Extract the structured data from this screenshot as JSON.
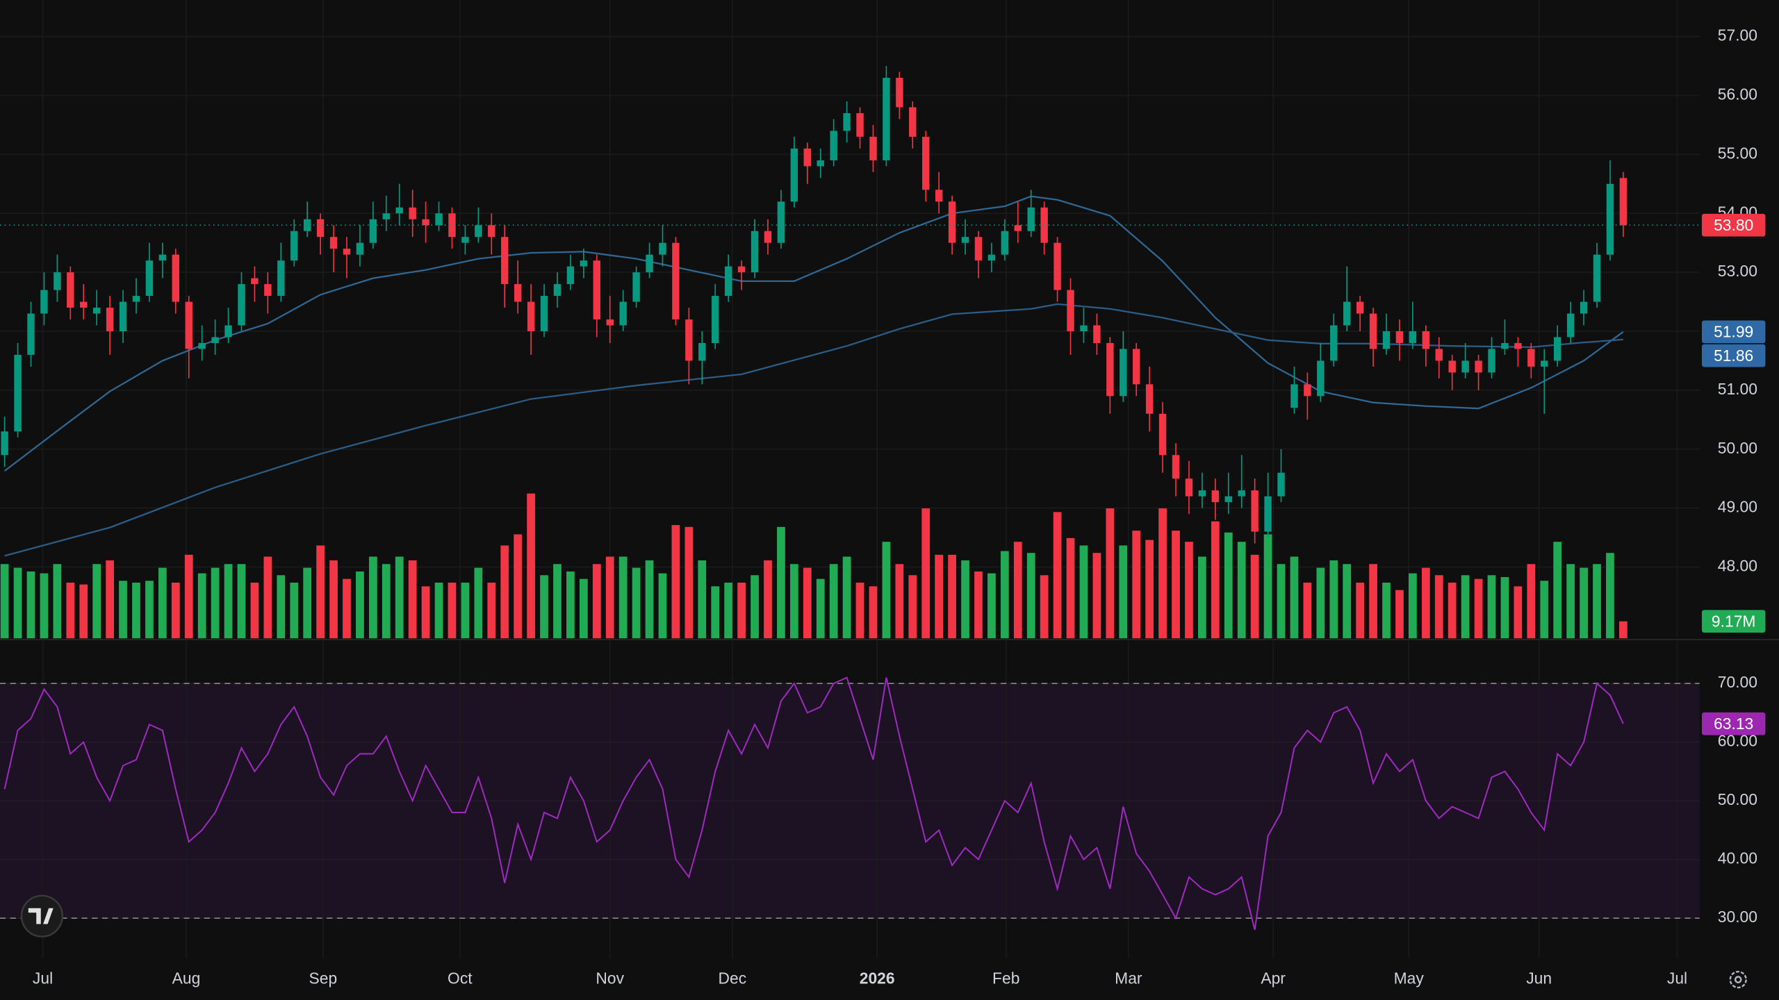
{
  "chart_data": {
    "type": "candlestick",
    "xlim": [
      -0.35,
      128.8
    ],
    "xticks": [
      {
        "value": 2.9,
        "label": "Jul"
      },
      {
        "value": 13.8,
        "label": "Aug"
      },
      {
        "value": 24.2,
        "label": "Sep"
      },
      {
        "value": 34.6,
        "label": "Oct"
      },
      {
        "value": 46,
        "label": "Nov"
      },
      {
        "value": 55.3,
        "label": "Dec"
      },
      {
        "value": 66.3,
        "label": "2026"
      },
      {
        "value": 76.1,
        "label": "Feb"
      },
      {
        "value": 85.4,
        "label": "Mar"
      },
      {
        "value": 96.4,
        "label": "Apr"
      },
      {
        "value": 106.7,
        "label": "May"
      },
      {
        "value": 116.6,
        "label": "Jun"
      },
      {
        "value": 127.1,
        "label": "Jul"
      }
    ],
    "ylim": [
      46.79,
      57.62
    ],
    "yticks": [
      {
        "value": 48,
        "label": "48.00"
      },
      {
        "value": 49,
        "label": "49.00"
      },
      {
        "value": 50,
        "label": "50.00"
      },
      {
        "value": 51,
        "label": "51.00"
      },
      {
        "value": 52,
        "label": "52.00"
      },
      {
        "value": 53,
        "label": "53.00"
      },
      {
        "value": 54,
        "label": "54.00"
      },
      {
        "value": 55,
        "label": "55.00"
      },
      {
        "value": 56,
        "label": "56.00"
      },
      {
        "value": 57,
        "label": "57.00"
      }
    ],
    "grid": true,
    "up_color": "#089981",
    "down_color": "#f23645",
    "ohlc": [
      [
        49.9,
        50.55,
        49.7,
        50.3
      ],
      [
        50.3,
        51.8,
        50.2,
        51.6
      ],
      [
        51.6,
        52.5,
        51.4,
        52.3
      ],
      [
        52.3,
        53.0,
        52.1,
        52.7
      ],
      [
        52.7,
        53.3,
        52.5,
        53.0
      ],
      [
        53.0,
        53.1,
        52.2,
        52.4
      ],
      [
        52.5,
        52.8,
        52.2,
        52.4
      ],
      [
        52.3,
        52.7,
        52.1,
        52.4
      ],
      [
        52.4,
        52.6,
        51.6,
        52.0
      ],
      [
        52.0,
        52.7,
        51.8,
        52.5
      ],
      [
        52.5,
        52.9,
        52.3,
        52.6
      ],
      [
        52.6,
        53.5,
        52.5,
        53.2
      ],
      [
        53.2,
        53.5,
        52.9,
        53.3
      ],
      [
        53.3,
        53.4,
        52.3,
        52.5
      ],
      [
        52.5,
        52.6,
        51.2,
        51.7
      ],
      [
        51.7,
        52.1,
        51.5,
        51.8
      ],
      [
        51.8,
        52.2,
        51.6,
        51.9
      ],
      [
        51.9,
        52.4,
        51.8,
        52.1
      ],
      [
        52.1,
        53.0,
        52.0,
        52.8
      ],
      [
        52.9,
        53.1,
        52.5,
        52.8
      ],
      [
        52.8,
        53.0,
        52.3,
        52.6
      ],
      [
        52.6,
        53.5,
        52.5,
        53.2
      ],
      [
        53.2,
        53.9,
        53.1,
        53.7
      ],
      [
        53.7,
        54.2,
        53.6,
        53.9
      ],
      [
        53.9,
        54.0,
        53.3,
        53.6
      ],
      [
        53.6,
        53.8,
        53.0,
        53.4
      ],
      [
        53.4,
        53.6,
        52.9,
        53.3
      ],
      [
        53.3,
        53.8,
        53.1,
        53.5
      ],
      [
        53.5,
        54.2,
        53.4,
        53.9
      ],
      [
        53.9,
        54.3,
        53.7,
        54.0
      ],
      [
        54.0,
        54.5,
        53.8,
        54.1
      ],
      [
        54.1,
        54.4,
        53.6,
        53.9
      ],
      [
        53.9,
        54.2,
        53.5,
        53.8
      ],
      [
        53.8,
        54.2,
        53.7,
        54.0
      ],
      [
        54.0,
        54.1,
        53.4,
        53.6
      ],
      [
        53.5,
        53.8,
        53.3,
        53.6
      ],
      [
        53.6,
        54.1,
        53.5,
        53.8
      ],
      [
        53.8,
        54.0,
        53.3,
        53.6
      ],
      [
        53.6,
        53.8,
        52.4,
        52.8
      ],
      [
        52.8,
        53.2,
        52.3,
        52.5
      ],
      [
        52.5,
        52.8,
        51.6,
        52.0
      ],
      [
        52.0,
        52.8,
        51.9,
        52.6
      ],
      [
        52.6,
        53.0,
        52.4,
        52.8
      ],
      [
        52.8,
        53.3,
        52.7,
        53.1
      ],
      [
        53.1,
        53.4,
        52.9,
        53.2
      ],
      [
        53.2,
        53.3,
        51.9,
        52.2
      ],
      [
        52.2,
        52.6,
        51.8,
        52.1
      ],
      [
        52.1,
        52.7,
        52.0,
        52.5
      ],
      [
        52.5,
        53.1,
        52.4,
        53.0
      ],
      [
        53.0,
        53.5,
        52.9,
        53.3
      ],
      [
        53.3,
        53.8,
        53.1,
        53.5
      ],
      [
        53.5,
        53.6,
        52.1,
        52.2
      ],
      [
        52.2,
        52.4,
        51.1,
        51.5
      ],
      [
        51.5,
        52.0,
        51.1,
        51.8
      ],
      [
        51.8,
        52.8,
        51.7,
        52.6
      ],
      [
        52.6,
        53.3,
        52.5,
        53.1
      ],
      [
        53.1,
        53.2,
        52.7,
        53.0
      ],
      [
        53.0,
        53.9,
        52.9,
        53.7
      ],
      [
        53.7,
        53.9,
        53.3,
        53.5
      ],
      [
        53.5,
        54.4,
        53.4,
        54.2
      ],
      [
        54.2,
        55.3,
        54.1,
        55.1
      ],
      [
        55.1,
        55.2,
        54.5,
        54.8
      ],
      [
        54.8,
        55.1,
        54.6,
        54.9
      ],
      [
        54.9,
        55.6,
        54.8,
        55.4
      ],
      [
        55.4,
        55.9,
        55.2,
        55.7
      ],
      [
        55.7,
        55.8,
        55.1,
        55.3
      ],
      [
        55.3,
        55.5,
        54.7,
        54.9
      ],
      [
        54.9,
        56.5,
        54.8,
        56.3
      ],
      [
        56.3,
        56.4,
        55.6,
        55.8
      ],
      [
        55.8,
        55.9,
        55.1,
        55.3
      ],
      [
        55.3,
        55.4,
        54.2,
        54.4
      ],
      [
        54.4,
        54.7,
        54.0,
        54.2
      ],
      [
        54.2,
        54.3,
        53.3,
        53.5
      ],
      [
        53.5,
        53.9,
        53.3,
        53.6
      ],
      [
        53.6,
        53.7,
        52.9,
        53.2
      ],
      [
        53.2,
        53.5,
        53.0,
        53.3
      ],
      [
        53.3,
        53.9,
        53.2,
        53.7
      ],
      [
        53.8,
        54.2,
        53.5,
        53.7
      ],
      [
        53.7,
        54.4,
        53.6,
        54.1
      ],
      [
        54.1,
        54.2,
        53.3,
        53.5
      ],
      [
        53.5,
        53.6,
        52.5,
        52.7
      ],
      [
        52.7,
        52.9,
        51.6,
        52.0
      ],
      [
        52.0,
        52.4,
        51.8,
        52.1
      ],
      [
        52.1,
        52.3,
        51.6,
        51.8
      ],
      [
        51.8,
        51.9,
        50.6,
        50.9
      ],
      [
        50.9,
        52.0,
        50.8,
        51.7
      ],
      [
        51.7,
        51.8,
        50.9,
        51.1
      ],
      [
        51.1,
        51.4,
        50.3,
        50.6
      ],
      [
        50.6,
        50.8,
        49.6,
        49.9
      ],
      [
        49.9,
        50.1,
        49.2,
        49.5
      ],
      [
        49.5,
        49.8,
        48.9,
        49.2
      ],
      [
        49.2,
        49.6,
        49.0,
        49.3
      ],
      [
        49.3,
        49.5,
        48.8,
        49.1
      ],
      [
        49.1,
        49.6,
        48.9,
        49.2
      ],
      [
        49.2,
        49.9,
        49.0,
        49.3
      ],
      [
        49.3,
        49.5,
        48.4,
        48.6
      ],
      [
        48.6,
        49.6,
        48.5,
        49.2
      ],
      [
        49.2,
        50.0,
        49.1,
        49.6
      ],
      [
        50.7,
        51.4,
        50.6,
        51.1
      ],
      [
        51.1,
        51.3,
        50.5,
        50.9
      ],
      [
        50.9,
        51.8,
        50.8,
        51.5
      ],
      [
        51.5,
        52.3,
        51.4,
        52.1
      ],
      [
        52.1,
        53.1,
        52.0,
        52.5
      ],
      [
        52.5,
        52.6,
        52.0,
        52.3
      ],
      [
        52.3,
        52.4,
        51.4,
        51.7
      ],
      [
        51.7,
        52.3,
        51.6,
        52.0
      ],
      [
        52.0,
        52.2,
        51.5,
        51.8
      ],
      [
        51.8,
        52.5,
        51.7,
        52.0
      ],
      [
        52.0,
        52.1,
        51.4,
        51.7
      ],
      [
        51.7,
        51.9,
        51.2,
        51.5
      ],
      [
        51.5,
        51.6,
        51.0,
        51.3
      ],
      [
        51.3,
        51.8,
        51.2,
        51.5
      ],
      [
        51.5,
        51.6,
        51.0,
        51.3
      ],
      [
        51.3,
        51.9,
        51.2,
        51.7
      ],
      [
        51.7,
        52.2,
        51.6,
        51.8
      ],
      [
        51.8,
        51.9,
        51.4,
        51.7
      ],
      [
        51.7,
        51.8,
        51.2,
        51.4
      ],
      [
        51.4,
        51.7,
        50.6,
        51.5
      ],
      [
        51.5,
        52.1,
        51.4,
        51.9
      ],
      [
        51.9,
        52.5,
        51.8,
        52.3
      ],
      [
        52.3,
        52.7,
        52.1,
        52.5
      ],
      [
        52.5,
        53.5,
        52.4,
        53.3
      ],
      [
        53.3,
        54.9,
        53.2,
        54.5
      ],
      [
        54.6,
        54.7,
        53.6,
        53.8
      ]
    ],
    "last_label": "53.80",
    "volume": {
      "ylim": [
        0,
        80
      ],
      "up_color": "#22ab55",
      "down_color": "#f23645",
      "end_label": "9.17M",
      "values": [
        40,
        38,
        36,
        35,
        40,
        30,
        29,
        40,
        42,
        31,
        30,
        31,
        38,
        30,
        45,
        35,
        38,
        40,
        40,
        30,
        44,
        34,
        30,
        38,
        50,
        42,
        32,
        36,
        44,
        40,
        44,
        42,
        28,
        30,
        30,
        30,
        38,
        30,
        50,
        56,
        78,
        34,
        40,
        36,
        32,
        40,
        44,
        44,
        38,
        42,
        35,
        61,
        60,
        42,
        28,
        30,
        30,
        34,
        42,
        60,
        40,
        38,
        32,
        40,
        44,
        30,
        28,
        52,
        40,
        34,
        70,
        45,
        45,
        42,
        36,
        35,
        47,
        52,
        46,
        34,
        68,
        54,
        50,
        46,
        70,
        50,
        58,
        53,
        70,
        58,
        52,
        44,
        63,
        57,
        52,
        45,
        56,
        40,
        44,
        30,
        38,
        42,
        40,
        30,
        40,
        30,
        26,
        35,
        38,
        34,
        30,
        34,
        32,
        34,
        33,
        28,
        40,
        31,
        52,
        40,
        38,
        40,
        46,
        9.17
      ]
    },
    "lines": [
      {
        "color": "#2f6894",
        "end_label": "51.99",
        "x": [
          0,
          4,
          8,
          12,
          16,
          20,
          24,
          28,
          32,
          36,
          40,
          44,
          48,
          52,
          56,
          60,
          64,
          68,
          72,
          76,
          78,
          80,
          84,
          88,
          92,
          96,
          100,
          104,
          108,
          112,
          116,
          120,
          123
        ],
        "values": [
          49.63,
          50.31,
          50.98,
          51.5,
          51.85,
          52.13,
          52.62,
          52.9,
          53.04,
          53.23,
          53.33,
          53.35,
          53.23,
          53.04,
          52.85,
          52.85,
          53.23,
          53.67,
          54.0,
          54.12,
          54.29,
          54.23,
          53.96,
          53.19,
          52.23,
          51.46,
          50.98,
          50.79,
          50.73,
          50.69,
          51.04,
          51.5,
          51.99
        ]
      },
      {
        "color": "#2a5d87",
        "end_label": "51.86",
        "x": [
          0,
          8,
          16,
          24,
          32,
          40,
          48,
          56,
          64,
          68,
          72,
          78,
          80,
          84,
          88,
          92,
          96,
          100,
          104,
          110,
          116,
          120,
          123
        ],
        "values": [
          48.19,
          48.67,
          49.35,
          49.92,
          50.4,
          50.85,
          51.08,
          51.27,
          51.75,
          52.04,
          52.29,
          52.38,
          52.46,
          52.38,
          52.23,
          52.04,
          51.85,
          51.79,
          51.79,
          51.75,
          51.73,
          51.81,
          51.86
        ]
      }
    ],
    "rsi": {
      "color": "#a12bc2",
      "ylim": [
        23.2,
        77.3
      ],
      "bands": [
        30,
        70
      ],
      "end_label": "63.13",
      "yticks": [
        {
          "value": 30,
          "label": "30.00"
        },
        {
          "value": 40,
          "label": "40.00"
        },
        {
          "value": 50,
          "label": "50.00"
        },
        {
          "value": 60,
          "label": "60.00"
        },
        {
          "value": 70,
          "label": "70.00"
        }
      ],
      "values": [
        52,
        62,
        64,
        69,
        66,
        58,
        60,
        54,
        50,
        56,
        57,
        63,
        62,
        52,
        43,
        45,
        48,
        53,
        59,
        55,
        58,
        63,
        66,
        61,
        54,
        51,
        56,
        58,
        58,
        61,
        55,
        50,
        56,
        52,
        48,
        48,
        54,
        47,
        36,
        46,
        40,
        48,
        47,
        54,
        50,
        43,
        45,
        50,
        54,
        57,
        52,
        40,
        37,
        45,
        55,
        62,
        58,
        63,
        59,
        67,
        70,
        65,
        66,
        70,
        71,
        64,
        57,
        71,
        61,
        52,
        43,
        45,
        39,
        42,
        40,
        45,
        50,
        48,
        53,
        43,
        35,
        44,
        40,
        42,
        35,
        49,
        41,
        38,
        34,
        30,
        37,
        35,
        34,
        35,
        37,
        28,
        44,
        48,
        59,
        62,
        60,
        65,
        66,
        62,
        53,
        58,
        55,
        57,
        50,
        47,
        49,
        48,
        47,
        54,
        55,
        52,
        48,
        45,
        58,
        56,
        60,
        70,
        68,
        63.13
      ]
    }
  }
}
